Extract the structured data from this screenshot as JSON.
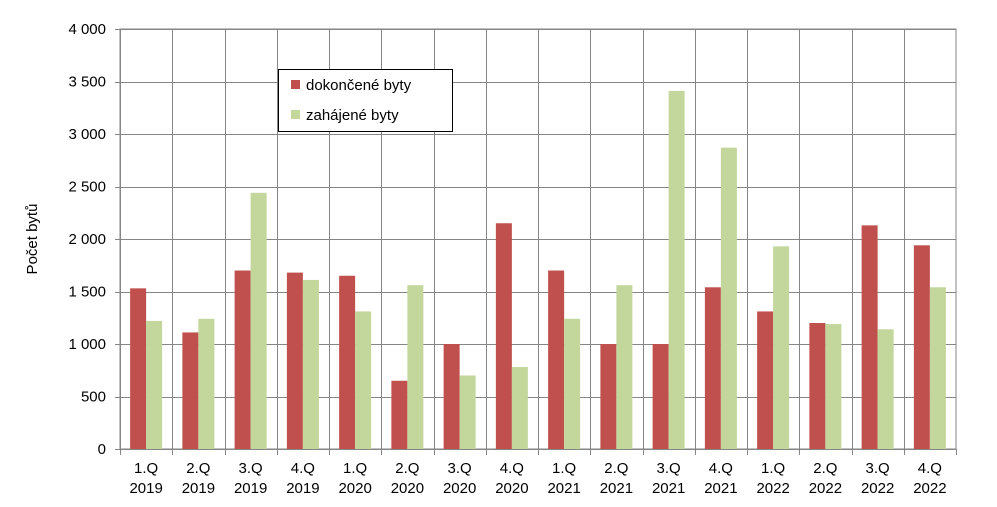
{
  "chart_data": {
    "type": "bar",
    "ylabel": "Počet bytů",
    "ylim": [
      0,
      4000
    ],
    "ytick_step": 500,
    "ytick_labels": [
      "0",
      "500",
      "1 000",
      "1 500",
      "2 000",
      "2 500",
      "3 000",
      "3 500",
      "4 000"
    ],
    "grid": true,
    "legend_position": "top-left",
    "categories": [
      [
        "1.Q",
        "2019"
      ],
      [
        "2.Q",
        "2019"
      ],
      [
        "3.Q",
        "2019"
      ],
      [
        "4.Q",
        "2019"
      ],
      [
        "1.Q",
        "2020"
      ],
      [
        "2.Q",
        "2020"
      ],
      [
        "3.Q",
        "2020"
      ],
      [
        "4.Q",
        "2020"
      ],
      [
        "1.Q",
        "2021"
      ],
      [
        "2.Q",
        "2021"
      ],
      [
        "3.Q",
        "2021"
      ],
      [
        "4.Q",
        "2021"
      ],
      [
        "1.Q",
        "2022"
      ],
      [
        "2.Q",
        "2022"
      ],
      [
        "3.Q",
        "2022"
      ],
      [
        "4.Q",
        "2022"
      ]
    ],
    "series": [
      {
        "name": "dokončené byty",
        "color": "#c0504d",
        "values": [
          1530,
          1110,
          1700,
          1680,
          1650,
          650,
          1000,
          2150,
          1700,
          1000,
          1000,
          1540,
          1310,
          1200,
          2130,
          1940
        ]
      },
      {
        "name": "zahájené byty",
        "color": "#c3d69b",
        "values": [
          1220,
          1240,
          2440,
          1610,
          1310,
          1560,
          700,
          780,
          1240,
          1560,
          3410,
          2870,
          1930,
          1190,
          1140,
          1540
        ]
      }
    ]
  }
}
